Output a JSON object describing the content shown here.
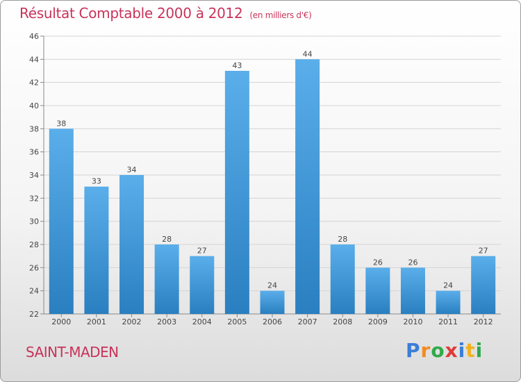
{
  "chart_data": {
    "type": "bar",
    "title": "Résultat Comptable 2000 à 2012",
    "unit_note": "(en milliers d'€)",
    "xlabel": "",
    "ylabel": "",
    "categories": [
      "2000",
      "2001",
      "2002",
      "2003",
      "2004",
      "2005",
      "2006",
      "2007",
      "2008",
      "2009",
      "2010",
      "2011",
      "2012"
    ],
    "values": [
      38,
      33,
      34,
      28,
      27,
      43,
      24,
      44,
      28,
      26,
      26,
      24,
      27
    ],
    "ylim": [
      22,
      46
    ],
    "yticks": [
      22,
      24,
      26,
      28,
      30,
      32,
      34,
      36,
      38,
      40,
      42,
      44,
      46
    ],
    "grid": true,
    "bar_color_top": "#5aaeea",
    "bar_color_bottom": "#2a7fc0"
  },
  "footer": {
    "commune": "SAINT-MADEN",
    "brand": "Proxiti",
    "brand_colors": {
      "title": "#c8335a"
    }
  }
}
